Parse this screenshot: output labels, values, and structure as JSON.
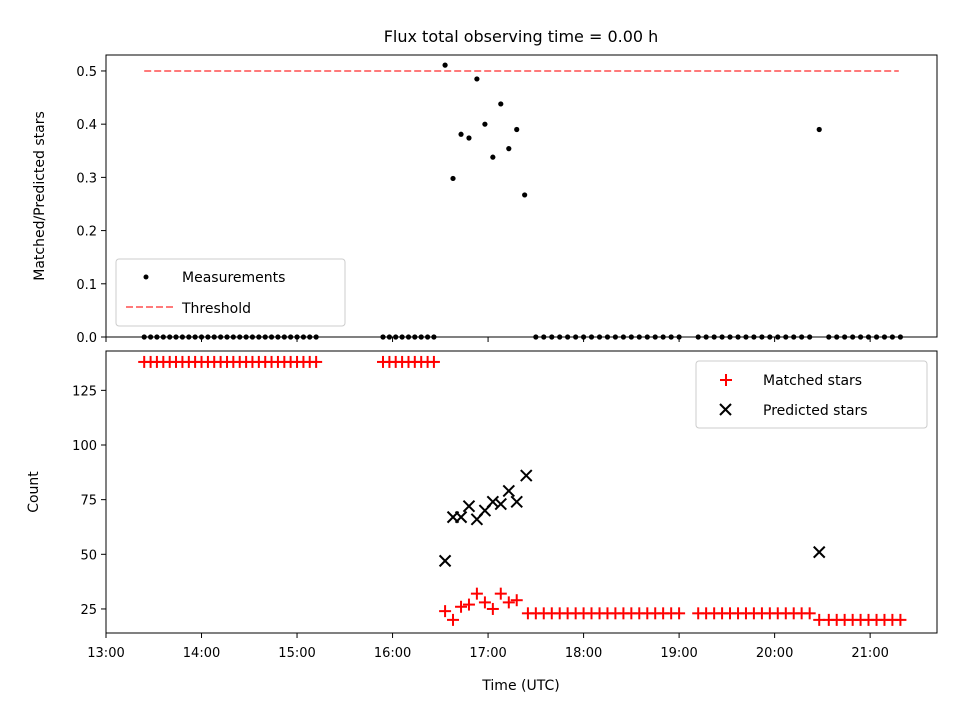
{
  "chart_data": [
    {
      "type": "scatter",
      "title": "Flux total observing time = 0.00 h",
      "xlabel": "",
      "ylabel": "Matched/Predicted stars",
      "ylim": [
        0.0,
        0.53
      ],
      "yticks": [
        0.0,
        0.1,
        0.2,
        0.3,
        0.4,
        0.5
      ],
      "ytick_labels": [
        "0.0",
        "0.1",
        "0.2",
        "0.3",
        "0.4",
        "0.5"
      ],
      "legend_location": "lower-left",
      "threshold": {
        "name": "Threshold",
        "y": 0.5,
        "x_range": [
          13.4,
          21.3
        ],
        "color": "#ff7a7a",
        "style": "dashed"
      },
      "series": [
        {
          "name": "Measurements",
          "marker": "dot",
          "color": "#000000",
          "x": [
            13.4,
            13.467,
            13.533,
            13.6,
            13.667,
            13.733,
            13.8,
            13.867,
            13.933,
            14.0,
            14.067,
            14.133,
            14.2,
            14.267,
            14.333,
            14.4,
            14.467,
            14.533,
            14.6,
            14.667,
            14.733,
            14.8,
            14.867,
            14.933,
            15.0,
            15.067,
            15.133,
            15.2,
            15.9,
            15.967,
            16.033,
            16.1,
            16.167,
            16.233,
            16.3,
            16.367,
            16.433,
            16.55,
            16.633,
            16.717,
            16.8,
            16.883,
            16.967,
            17.05,
            17.133,
            17.217,
            17.3,
            17.383,
            17.5,
            17.583,
            17.667,
            17.75,
            17.833,
            17.917,
            18.0,
            18.083,
            18.167,
            18.25,
            18.333,
            18.417,
            18.5,
            18.583,
            18.667,
            18.75,
            18.833,
            18.917,
            19.0,
            19.2,
            19.283,
            19.367,
            19.45,
            19.533,
            19.617,
            19.7,
            19.783,
            19.867,
            19.95,
            20.033,
            20.117,
            20.2,
            20.283,
            20.367,
            20.467,
            20.567,
            20.65,
            20.733,
            20.817,
            20.9,
            20.983,
            21.067,
            21.15,
            21.233,
            21.317
          ],
          "y": [
            0,
            0,
            0,
            0,
            0,
            0,
            0,
            0,
            0,
            0,
            0,
            0,
            0,
            0,
            0,
            0,
            0,
            0,
            0,
            0,
            0,
            0,
            0,
            0,
            0,
            0,
            0,
            0,
            0,
            0,
            0,
            0,
            0,
            0,
            0,
            0,
            0,
            0.511,
            0.298,
            0.381,
            0.374,
            0.485,
            0.4,
            0.338,
            0.438,
            0.354,
            0.39,
            0.267,
            0,
            0,
            0,
            0,
            0,
            0,
            0,
            0,
            0,
            0,
            0,
            0,
            0,
            0,
            0,
            0,
            0,
            0,
            0,
            0,
            0,
            0,
            0,
            0,
            0,
            0,
            0,
            0,
            0,
            0,
            0,
            0,
            0,
            0,
            0.39,
            0,
            0,
            0,
            0,
            0,
            0,
            0,
            0,
            0,
            0
          ]
        }
      ]
    },
    {
      "type": "scatter",
      "title": "",
      "xlabel": "Time (UTC)",
      "ylabel": "Count",
      "xlim": [
        13.0,
        21.7
      ],
      "ylim": [
        14,
        143
      ],
      "yticks": [
        25,
        50,
        75,
        100,
        125
      ],
      "ytick_labels": [
        "25",
        "50",
        "75",
        "100",
        "125"
      ],
      "xticks": [
        13,
        14,
        15,
        16,
        17,
        18,
        19,
        20,
        21
      ],
      "xtick_labels": [
        "13:00",
        "14:00",
        "15:00",
        "16:00",
        "17:00",
        "18:00",
        "19:00",
        "20:00",
        "21:00"
      ],
      "legend_location": "upper-right",
      "series": [
        {
          "name": "Matched stars",
          "marker": "plus",
          "color": "#ff0000",
          "x": [
            13.4,
            13.467,
            13.533,
            13.6,
            13.667,
            13.733,
            13.8,
            13.867,
            13.933,
            14.0,
            14.067,
            14.133,
            14.2,
            14.267,
            14.333,
            14.4,
            14.467,
            14.533,
            14.6,
            14.667,
            14.733,
            14.8,
            14.867,
            14.933,
            15.0,
            15.067,
            15.133,
            15.2,
            15.9,
            15.967,
            16.033,
            16.1,
            16.167,
            16.233,
            16.3,
            16.367,
            16.433,
            16.55,
            16.633,
            16.717,
            16.8,
            16.883,
            16.967,
            17.05,
            17.133,
            17.217,
            17.3,
            17.417,
            17.5,
            17.583,
            17.667,
            17.75,
            17.833,
            17.917,
            18.0,
            18.083,
            18.167,
            18.25,
            18.333,
            18.417,
            18.5,
            18.583,
            18.667,
            18.75,
            18.833,
            18.917,
            19.0,
            19.2,
            19.283,
            19.367,
            19.45,
            19.533,
            19.617,
            19.7,
            19.783,
            19.867,
            19.95,
            20.033,
            20.117,
            20.2,
            20.283,
            20.367,
            20.467,
            20.567,
            20.65,
            20.733,
            20.817,
            20.9,
            20.983,
            21.067,
            21.15,
            21.233,
            21.317
          ],
          "y": [
            138,
            138,
            138,
            138,
            138,
            138,
            138,
            138,
            138,
            138,
            138,
            138,
            138,
            138,
            138,
            138,
            138,
            138,
            138,
            138,
            138,
            138,
            138,
            138,
            138,
            138,
            138,
            138,
            138,
            138,
            138,
            138,
            138,
            138,
            138,
            138,
            138,
            24,
            20,
            26,
            27,
            32,
            28,
            25,
            32,
            28,
            29,
            23,
            23,
            23,
            23,
            23,
            23,
            23,
            23,
            23,
            23,
            23,
            23,
            23,
            23,
            23,
            23,
            23,
            23,
            23,
            23,
            23,
            23,
            23,
            23,
            23,
            23,
            23,
            23,
            23,
            23,
            23,
            23,
            23,
            23,
            23,
            20,
            20,
            20,
            20,
            20,
            20,
            20,
            20,
            20,
            20,
            20
          ]
        },
        {
          "name": "Predicted stars",
          "marker": "x",
          "color": "#000000",
          "x": [
            16.55,
            16.633,
            16.717,
            16.8,
            16.883,
            16.967,
            17.05,
            17.133,
            17.217,
            17.3,
            17.4,
            20.467
          ],
          "y": [
            47,
            67,
            67,
            72,
            66,
            70,
            74,
            73,
            79,
            74,
            86,
            51
          ]
        }
      ]
    }
  ]
}
